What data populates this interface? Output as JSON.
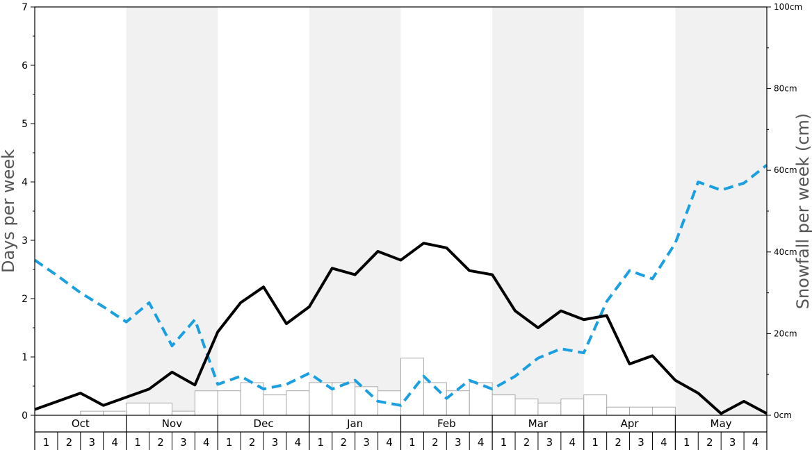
{
  "chart_data": {
    "type": "combo",
    "ylabel_left": "Days per week",
    "ylabel_right": "Snowfall per week (cm)",
    "ylim_left": [
      0,
      7
    ],
    "yticks_left": [
      "0",
      "1",
      "2",
      "3",
      "4",
      "5",
      "6",
      "7"
    ],
    "ylim_right": [
      0,
      100
    ],
    "yticks_right": [
      "0cm",
      "20cm",
      "40cm",
      "60cm",
      "80cm",
      "100cm"
    ],
    "months": [
      "Oct",
      "Nov",
      "Dec",
      "Jan",
      "Feb",
      "Mar",
      "Apr",
      "May"
    ],
    "weeks": [
      "1",
      "2",
      "3",
      "4"
    ],
    "colors": {
      "shade": "#f1f1f1",
      "bar_stroke": "#aaaaaa",
      "line_solid": "#000000",
      "line_dashed": "#1a9fe0"
    },
    "snowfall_bars_cm": [
      0,
      0,
      1,
      1,
      3,
      3,
      1,
      6,
      6,
      8,
      5,
      6,
      8,
      8,
      7,
      6,
      14,
      8,
      6,
      8,
      5,
      4,
      3,
      4,
      5,
      2,
      2,
      2,
      0,
      0,
      0,
      0
    ],
    "solid_line_days": [
      0.1,
      0.24,
      0.38,
      0.17,
      0.31,
      0.45,
      0.74,
      0.52,
      1.43,
      1.93,
      2.2,
      1.57,
      1.86,
      2.52,
      2.41,
      2.81,
      2.66,
      2.95,
      2.87,
      2.48,
      2.41,
      1.79,
      1.5,
      1.79,
      1.64,
      1.71,
      0.88,
      1.02,
      0.6,
      0.38,
      0.03,
      0.24,
      0.03
    ],
    "dashed_line_days": [
      2.66,
      2.39,
      2.1,
      1.86,
      1.6,
      1.93,
      1.19,
      1.64,
      0.53,
      0.67,
      0.45,
      0.53,
      0.72,
      0.45,
      0.6,
      0.24,
      0.17,
      0.67,
      0.29,
      0.6,
      0.45,
      0.67,
      0.98,
      1.14,
      1.07,
      1.95,
      2.48,
      2.34,
      2.95,
      4.0,
      3.86,
      3.98,
      4.29
    ]
  }
}
